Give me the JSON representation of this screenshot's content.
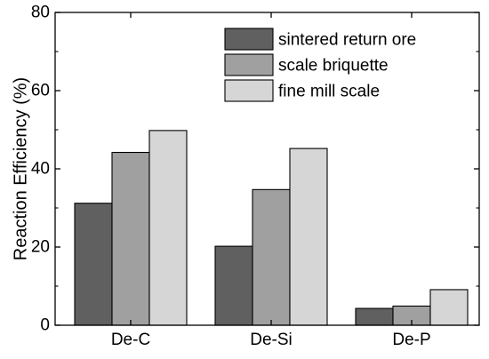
{
  "chart_data": {
    "type": "bar",
    "ylabel": "Reaction Efficiency (%)",
    "xlabel": "",
    "categories": [
      "De-C",
      "De-Si",
      "De-P"
    ],
    "ylim": [
      0,
      80
    ],
    "yticks": [
      0,
      20,
      40,
      60,
      80
    ],
    "grid": false,
    "legend_position": "top-right",
    "series": [
      {
        "name": "sintered return ore",
        "color": "#606060",
        "values": [
          31.2,
          20.2,
          4.3
        ]
      },
      {
        "name": "scale briquette",
        "color": "#a0a0a0",
        "values": [
          44.2,
          34.7,
          4.9
        ]
      },
      {
        "name": "fine mill scale",
        "color": "#d6d6d6",
        "values": [
          49.8,
          45.2,
          9.1
        ]
      }
    ]
  }
}
